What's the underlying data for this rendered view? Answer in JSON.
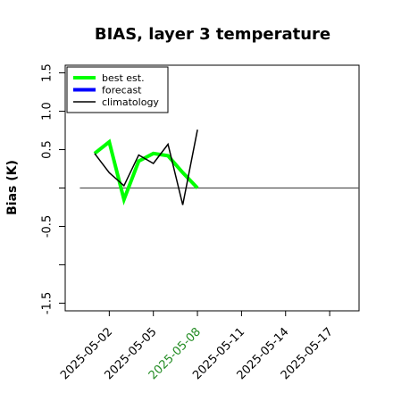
{
  "chart_data": {
    "type": "line",
    "title": "BIAS, layer 3 temperature",
    "ylabel": "Bias (K)",
    "xlabel": "",
    "ylim": [
      -1.6,
      1.6
    ],
    "yticks": [
      {
        "value": 1.5,
        "label": "1.5"
      },
      {
        "value": 1.0,
        "label": "1.0"
      },
      {
        "value": 0.5,
        "label": "0.5"
      },
      {
        "value": 0.0,
        "label": ""
      },
      {
        "value": -0.5,
        "label": "-0.5"
      },
      {
        "value": -1.0,
        "label": ""
      },
      {
        "value": -1.5,
        "label": "-1.5"
      }
    ],
    "xlim": [
      "2025-04-29",
      "2025-05-19"
    ],
    "xticks": [
      {
        "value": "2025-05-02",
        "label": "2025-05-02",
        "color": "#000000"
      },
      {
        "value": "2025-05-05",
        "label": "2025-05-05",
        "color": "#000000"
      },
      {
        "value": "2025-05-08",
        "label": "2025-05-08",
        "color": "#228b22"
      },
      {
        "value": "2025-05-11",
        "label": "2025-05-11",
        "color": "#000000"
      },
      {
        "value": "2025-05-14",
        "label": "2025-05-14",
        "color": "#000000"
      },
      {
        "value": "2025-05-17",
        "label": "2025-05-17",
        "color": "#000000"
      }
    ],
    "reference_line": {
      "y": 0,
      "from": "2025-04-30",
      "to": "2025-05-19",
      "color": "#555555"
    },
    "legend_placement": "top-left",
    "grid": false,
    "series": [
      {
        "name": "best est.",
        "color": "#00ff00",
        "width": 4,
        "points": [
          {
            "x": "2025-05-01",
            "y": 0.45
          },
          {
            "x": "2025-05-02",
            "y": 0.6
          },
          {
            "x": "2025-05-03",
            "y": -0.15
          },
          {
            "x": "2025-05-04",
            "y": 0.35
          },
          {
            "x": "2025-05-05",
            "y": 0.45
          },
          {
            "x": "2025-05-06",
            "y": 0.42
          },
          {
            "x": "2025-05-07",
            "y": 0.2
          },
          {
            "x": "2025-05-08",
            "y": 0.0
          }
        ]
      },
      {
        "name": "forecast",
        "color": "#0000ff",
        "width": 4,
        "points": []
      },
      {
        "name": "climatology",
        "color": "#000000",
        "width": 1.5,
        "points": [
          {
            "x": "2025-05-01",
            "y": 0.45
          },
          {
            "x": "2025-05-02",
            "y": 0.2
          },
          {
            "x": "2025-05-03",
            "y": 0.03
          },
          {
            "x": "2025-05-04",
            "y": 0.43
          },
          {
            "x": "2025-05-05",
            "y": 0.32
          },
          {
            "x": "2025-05-06",
            "y": 0.57
          },
          {
            "x": "2025-05-07",
            "y": -0.22
          },
          {
            "x": "2025-05-08",
            "y": 0.76
          }
        ]
      }
    ]
  }
}
